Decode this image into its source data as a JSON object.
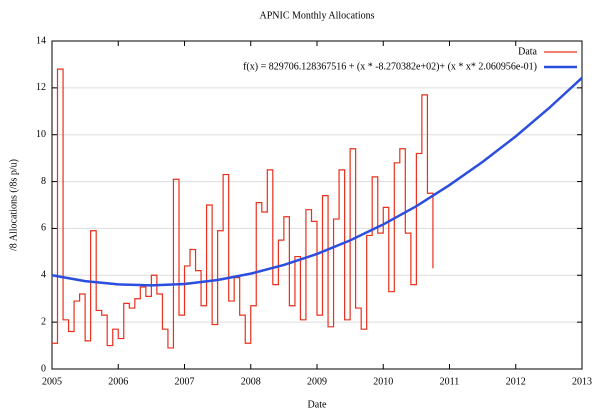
{
  "chart_data": {
    "type": "line",
    "title": "APNIC Monthly Allocations",
    "x_label": "Date",
    "y_label": "/8 Allocations (/8s p/u)",
    "xlim": [
      2005,
      2013
    ],
    "xticks": [
      2005,
      2006,
      2007,
      2008,
      2009,
      2010,
      2011,
      2012,
      2013
    ],
    "ylim": [
      0,
      14
    ],
    "yticks": [
      0,
      2,
      4,
      6,
      8,
      10,
      12,
      14
    ],
    "grid": true,
    "legend": "top-right",
    "series": [
      {
        "name": "Data",
        "color": "#e8301c",
        "style": "steps",
        "x": [
          2005.0,
          2005.083,
          2005.167,
          2005.25,
          2005.333,
          2005.417,
          2005.5,
          2005.583,
          2005.667,
          2005.75,
          2005.833,
          2005.917,
          2006.0,
          2006.083,
          2006.167,
          2006.25,
          2006.333,
          2006.417,
          2006.5,
          2006.583,
          2006.667,
          2006.75,
          2006.833,
          2006.917,
          2007.0,
          2007.083,
          2007.167,
          2007.25,
          2007.333,
          2007.417,
          2007.5,
          2007.583,
          2007.667,
          2007.75,
          2007.833,
          2007.917,
          2008.0,
          2008.083,
          2008.167,
          2008.25,
          2008.333,
          2008.417,
          2008.5,
          2008.583,
          2008.667,
          2008.75,
          2008.833,
          2008.917,
          2009.0,
          2009.083,
          2009.167,
          2009.25,
          2009.333,
          2009.417,
          2009.5,
          2009.583,
          2009.667,
          2009.75,
          2009.833,
          2009.917,
          2010.0,
          2010.083,
          2010.167,
          2010.25,
          2010.333,
          2010.417,
          2010.5,
          2010.583,
          2010.667,
          2010.75
        ],
        "values": [
          1.1,
          12.8,
          2.1,
          1.6,
          2.9,
          3.2,
          1.2,
          5.9,
          2.5,
          2.3,
          1.0,
          1.7,
          1.3,
          2.8,
          2.6,
          3.0,
          3.5,
          3.1,
          4.0,
          3.2,
          1.7,
          0.9,
          8.1,
          2.3,
          4.4,
          5.1,
          4.2,
          2.7,
          7.0,
          1.9,
          5.9,
          8.3,
          2.9,
          3.9,
          2.3,
          1.1,
          2.7,
          7.1,
          6.7,
          8.5,
          3.6,
          5.5,
          6.5,
          2.7,
          4.8,
          2.1,
          6.8,
          6.3,
          2.3,
          7.4,
          1.8,
          6.4,
          8.5,
          2.1,
          9.4,
          2.6,
          1.7,
          5.7,
          8.2,
          5.8,
          6.9,
          3.3,
          8.8,
          9.4,
          5.8,
          3.6,
          9.2,
          11.7,
          7.5,
          4.3
        ]
      },
      {
        "name": "f(x) = 829706.128367516 + (x * -8.270382e+02)+ (x * x* 2.060956e-01)",
        "color": "#2b4ee0",
        "style": "line",
        "x": [
          2005,
          2005.5,
          2006,
          2006.5,
          2007,
          2007.5,
          2008,
          2008.5,
          2009,
          2009.5,
          2010,
          2010.5,
          2011,
          2011.5,
          2012,
          2012.5,
          2013
        ],
        "values": [
          4.0,
          3.75,
          3.61,
          3.57,
          3.63,
          3.8,
          4.07,
          4.44,
          4.91,
          5.49,
          6.17,
          6.95,
          7.85,
          8.84,
          9.93,
          11.13,
          12.43
        ]
      }
    ]
  }
}
